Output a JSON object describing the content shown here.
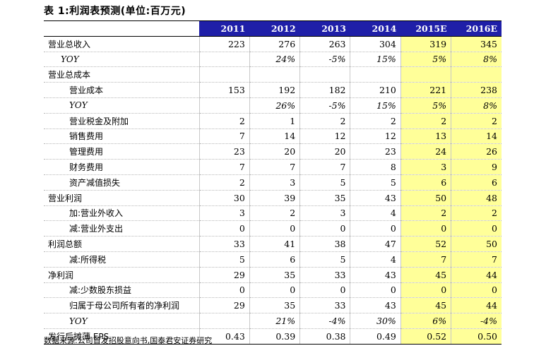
{
  "title": "表 1:利润表预测(单位:百万元)",
  "source": "数据来源:公司首发招股意向书,国泰君安证券研究",
  "colors": {
    "header_bg": "#1f1fa8",
    "header_text": "#ffffff",
    "estimate_highlight": "#ffff99"
  },
  "columns": [
    "2011",
    "2012",
    "2013",
    "2014",
    "2015E",
    "2016E"
  ],
  "estimate_columns": [
    "2015E",
    "2016E"
  ],
  "rows": [
    {
      "label": "营业总收入",
      "indent": 0,
      "values": [
        "223",
        "276",
        "263",
        "304",
        "319",
        "345"
      ]
    },
    {
      "label": "YOY",
      "indent": "yoy",
      "values": [
        "",
        "24%",
        "-5%",
        "15%",
        "5%",
        "8%"
      ]
    },
    {
      "label": "营业总成本",
      "indent": 0,
      "values": [
        "",
        "",
        "",
        "",
        "",
        ""
      ]
    },
    {
      "label": "营业成本",
      "indent": 1,
      "values": [
        "153",
        "192",
        "182",
        "210",
        "221",
        "238"
      ]
    },
    {
      "label": "YOY",
      "indent": "yoy-deep",
      "values": [
        "",
        "26%",
        "-5%",
        "15%",
        "5%",
        "8%"
      ]
    },
    {
      "label": "营业税金及附加",
      "indent": 1,
      "values": [
        "2",
        "1",
        "2",
        "2",
        "2",
        "2"
      ]
    },
    {
      "label": "销售费用",
      "indent": 1,
      "values": [
        "7",
        "14",
        "12",
        "12",
        "13",
        "14"
      ]
    },
    {
      "label": "管理费用",
      "indent": 1,
      "values": [
        "23",
        "20",
        "20",
        "23",
        "24",
        "26"
      ]
    },
    {
      "label": "财务费用",
      "indent": 1,
      "values": [
        "7",
        "7",
        "7",
        "8",
        "3",
        "9"
      ]
    },
    {
      "label": "资产减值损失",
      "indent": 1,
      "values": [
        "2",
        "3",
        "5",
        "5",
        "6",
        "6"
      ]
    },
    {
      "label": "营业利润",
      "indent": 0,
      "values": [
        "30",
        "39",
        "35",
        "43",
        "50",
        "48"
      ]
    },
    {
      "label": "加:营业外收入",
      "indent": 1,
      "values": [
        "3",
        "2",
        "3",
        "4",
        "2",
        "2"
      ]
    },
    {
      "label": "减:营业外支出",
      "indent": 1,
      "values": [
        "0",
        "0",
        "0",
        "0",
        "0",
        "0"
      ]
    },
    {
      "label": "利润总额",
      "indent": 0,
      "values": [
        "33",
        "41",
        "38",
        "47",
        "52",
        "50"
      ]
    },
    {
      "label": "减:所得税",
      "indent": 1,
      "values": [
        "5",
        "6",
        "5",
        "4",
        "7",
        "7"
      ]
    },
    {
      "label": "净利润",
      "indent": 0,
      "values": [
        "29",
        "35",
        "33",
        "43",
        "45",
        "44"
      ]
    },
    {
      "label": "减:少数股东损益",
      "indent": 1,
      "values": [
        "0",
        "0",
        "0",
        "0",
        "0",
        "0"
      ]
    },
    {
      "label": "归属于母公司所有者的净利润",
      "indent": 1,
      "values": [
        "29",
        "35",
        "33",
        "43",
        "45",
        "44"
      ]
    },
    {
      "label": "YOY",
      "indent": "yoy-deep",
      "values": [
        "",
        "21%",
        "-4%",
        "30%",
        "6%",
        "-4%"
      ]
    },
    {
      "label": "发行后摊薄 EPS",
      "indent": 0,
      "values": [
        "0.43",
        "0.39",
        "0.38",
        "0.49",
        "0.52",
        "0.50"
      ]
    }
  ]
}
